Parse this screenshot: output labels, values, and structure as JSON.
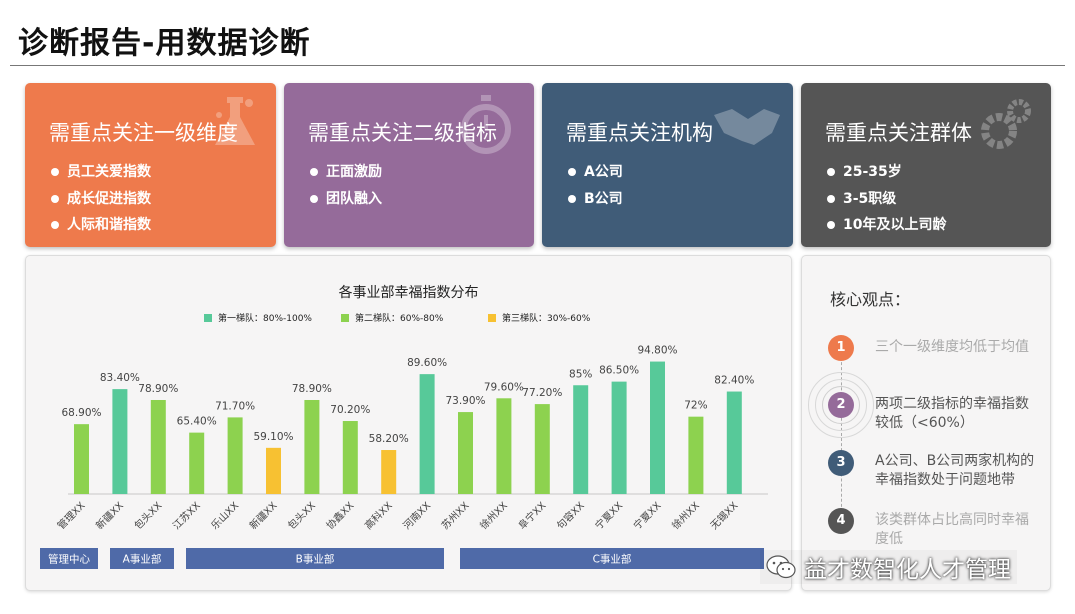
{
  "title": "诊断报告-用数据诊断",
  "cards": [
    {
      "title": "需重点关注一级维度",
      "items": [
        "员工关爱指数",
        "成长促进指数",
        "人际和谐指数"
      ],
      "icon": "flask-icon"
    },
    {
      "title": "需重点关注二级指标",
      "items": [
        "正面激励",
        "团队融入"
      ],
      "icon": "stopwatch-icon"
    },
    {
      "title": "需重点关注机构",
      "items": [
        "A公司",
        "B公司"
      ],
      "icon": "handshake-icon"
    },
    {
      "title": "需重点关注群体",
      "items": [
        "25-35岁",
        "3-5职级",
        "10年及以上司龄"
      ],
      "icon": "gears-icon"
    }
  ],
  "chart_data": {
    "type": "bar",
    "title": "各事业部幸福指数分布",
    "legend": [
      {
        "label": "第一梯队：80%-100%",
        "color": "#57c999"
      },
      {
        "label": "第二梯队：60%-80%",
        "color": "#8dd24f"
      },
      {
        "label": "第三梯队：30%-60%",
        "color": "#f7c132"
      }
    ],
    "categories": [
      "管理XX",
      "新疆XX",
      "包头XX",
      "江苏XX",
      "乐山XX",
      "新疆XX",
      "包头XX",
      "协鑫XX",
      "高科XX",
      "河南XX",
      "苏州XX",
      "徐州XX",
      "阜宁XX",
      "句容XX",
      "宁夏XX",
      "宁夏XX",
      "徐州XX",
      "无锡XX"
    ],
    "values": [
      68.9,
      83.4,
      78.9,
      65.4,
      71.7,
      59.1,
      78.9,
      70.2,
      58.2,
      89.6,
      73.9,
      79.6,
      77.2,
      85,
      86.5,
      94.8,
      72,
      82.4
    ],
    "labels": [
      "68.90%",
      "83.40%",
      "78.90%",
      "65.40%",
      "71.70%",
      "59.10%",
      "78.90%",
      "70.20%",
      "58.20%",
      "89.60%",
      "73.90%",
      "79.60%",
      "77.20%",
      "85%",
      "86.50%",
      "94.80%",
      "72%",
      "82.40%"
    ],
    "tiers": [
      2,
      1,
      2,
      2,
      2,
      3,
      2,
      2,
      3,
      1,
      2,
      2,
      2,
      1,
      1,
      1,
      2,
      1
    ],
    "groups": [
      {
        "label": "管理中心",
        "start": 0,
        "end": 0
      },
      {
        "label": "A事业部",
        "start": 1,
        "end": 2
      },
      {
        "label": "B事业部",
        "start": 3,
        "end": 9
      },
      {
        "label": "C事业部",
        "start": 10,
        "end": 17
      }
    ],
    "ylim": [
      40,
      100
    ],
    "grid": false
  },
  "core": {
    "title": "核心观点：",
    "points": [
      {
        "num": "1",
        "text": "三个一级维度均低于均值"
      },
      {
        "num": "2",
        "text": "两项二级指标的幸福指数较低（<60%）"
      },
      {
        "num": "3",
        "text": "A公司、B公司两家机构的幸福指数处于问题地带"
      },
      {
        "num": "4",
        "text": "该类群体占比高同时幸福度低"
      }
    ]
  },
  "watermark": {
    "text": "益才数智化人才管理",
    "icon": "wechat-icon"
  }
}
